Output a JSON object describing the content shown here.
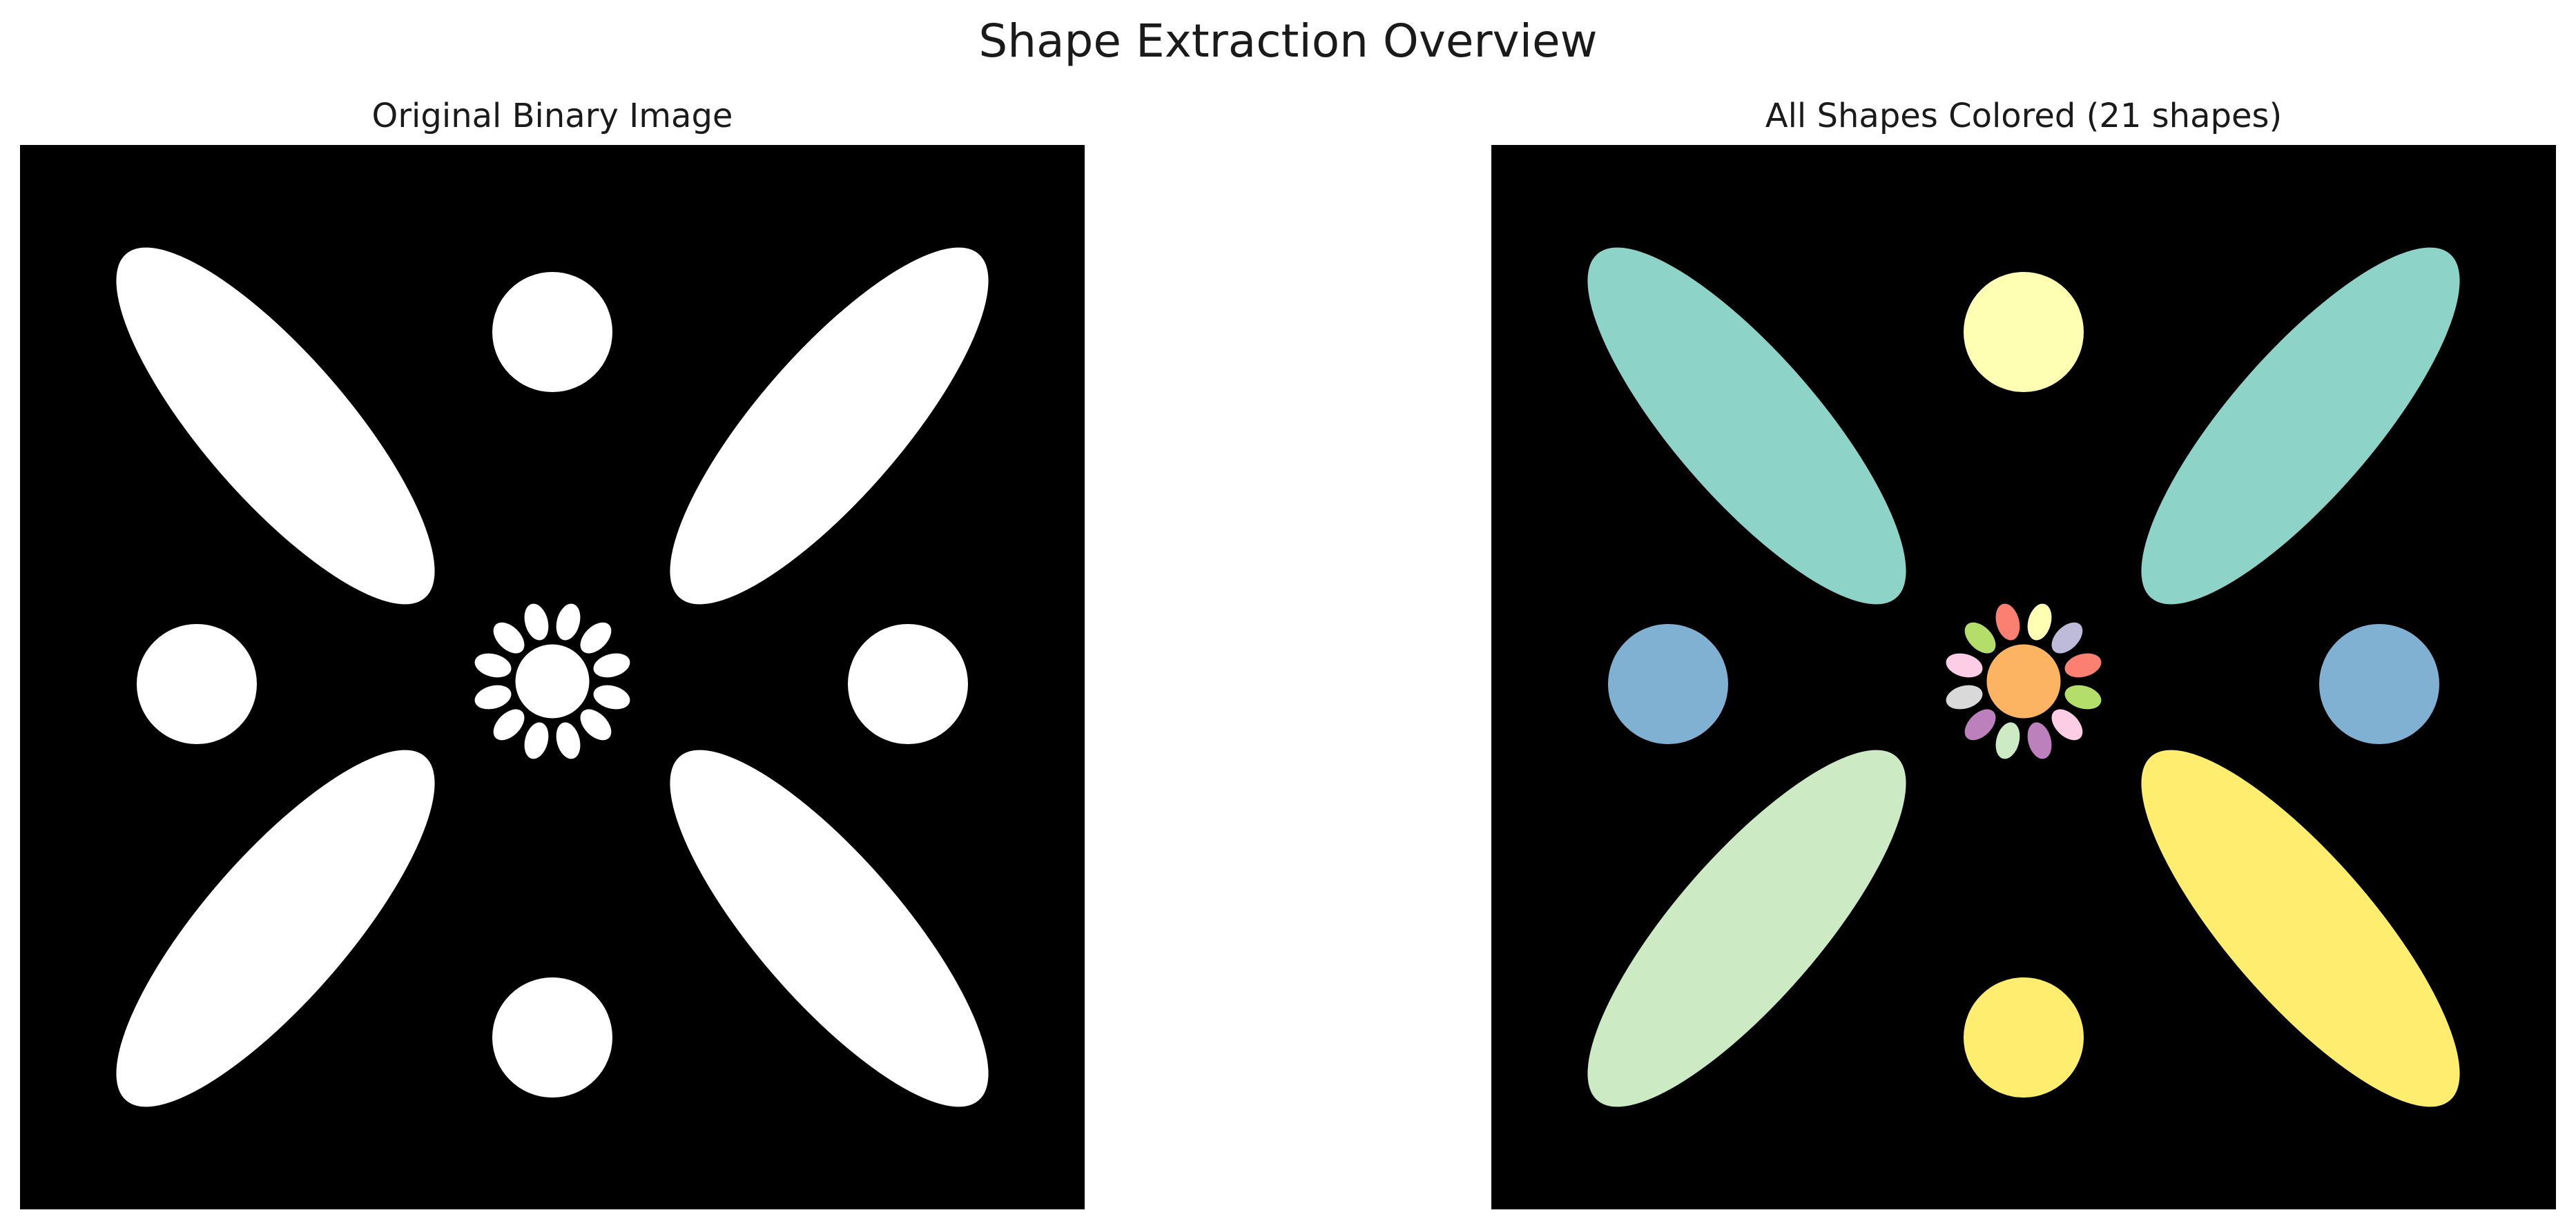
{
  "figure": {
    "title": "Shape Extraction Overview"
  },
  "panels": {
    "left": {
      "title": "Original Binary Image",
      "shape_fill": "#ffffff",
      "background": "#000000"
    },
    "right": {
      "title": "All Shapes Colored (21 shapes)",
      "background": "#000000",
      "shape_count": 21
    }
  },
  "shapes": [
    {
      "id": "petal-top-left",
      "kind": "ellipse",
      "color": "#8dd3c7"
    },
    {
      "id": "petal-top-right",
      "kind": "ellipse",
      "color": "#8dd3c7"
    },
    {
      "id": "petal-bottom-left",
      "kind": "ellipse",
      "color": "#ccebc5"
    },
    {
      "id": "petal-bottom-right",
      "kind": "ellipse",
      "color": "#ffed6f"
    },
    {
      "id": "circle-top",
      "kind": "circle",
      "color": "#ffffb3"
    },
    {
      "id": "circle-left",
      "kind": "circle",
      "color": "#80b1d3"
    },
    {
      "id": "circle-right",
      "kind": "circle",
      "color": "#80b1d3"
    },
    {
      "id": "circle-bottom",
      "kind": "circle",
      "color": "#ffed6f"
    },
    {
      "id": "center-disc",
      "kind": "circle",
      "color": "#fdb462"
    },
    {
      "id": "flower-petal-1",
      "kind": "petal",
      "color": "#ffffb3"
    },
    {
      "id": "flower-petal-2",
      "kind": "petal",
      "color": "#bebada"
    },
    {
      "id": "flower-petal-3",
      "kind": "petal",
      "color": "#fb8072"
    },
    {
      "id": "flower-petal-4",
      "kind": "petal",
      "color": "#b3de69"
    },
    {
      "id": "flower-petal-5",
      "kind": "petal",
      "color": "#fccde5"
    },
    {
      "id": "flower-petal-6",
      "kind": "petal",
      "color": "#bc80bd"
    },
    {
      "id": "flower-petal-7",
      "kind": "petal",
      "color": "#ccebc5"
    },
    {
      "id": "flower-petal-8",
      "kind": "petal",
      "color": "#bc80bd"
    },
    {
      "id": "flower-petal-9",
      "kind": "petal",
      "color": "#d9d9d9"
    },
    {
      "id": "flower-petal-10",
      "kind": "petal",
      "color": "#fccde5"
    },
    {
      "id": "flower-petal-11",
      "kind": "petal",
      "color": "#b3de69"
    },
    {
      "id": "flower-petal-12",
      "kind": "petal",
      "color": "#fb8072"
    }
  ]
}
